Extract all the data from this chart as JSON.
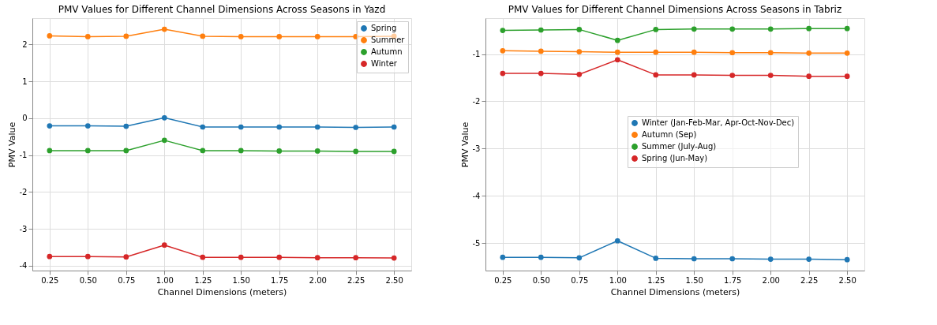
{
  "chart_data": [
    {
      "type": "line",
      "title": "PMV Values for Different Channel Dimensions Across Seasons in Yazd",
      "xlabel": "Channel Dimensions (meters)",
      "ylabel": "PMV Value",
      "x": [
        0.25,
        0.5,
        0.75,
        1.0,
        1.25,
        1.5,
        1.75,
        2.0,
        2.25,
        2.5
      ],
      "xlim": [
        0.1375,
        2.6125
      ],
      "xticks": [
        {
          "value": 0.25,
          "label": "0.25"
        },
        {
          "value": 0.5,
          "label": "0.50"
        },
        {
          "value": 0.75,
          "label": "0.75"
        },
        {
          "value": 1.0,
          "label": "1.00"
        },
        {
          "value": 1.25,
          "label": "1.25"
        },
        {
          "value": 1.5,
          "label": "1.50"
        },
        {
          "value": 1.75,
          "label": "1.75"
        },
        {
          "value": 2.0,
          "label": "2.00"
        },
        {
          "value": 2.25,
          "label": "2.25"
        },
        {
          "value": 2.5,
          "label": "2.50"
        }
      ],
      "ylim": [
        -4.13,
        2.71
      ],
      "yticks": [
        -4,
        -3,
        -2,
        -1,
        0,
        1,
        2
      ],
      "grid": true,
      "legend": "top right",
      "marker": "circle",
      "line_style": "solid",
      "series": [
        {
          "name": "Spring",
          "color": "#1f77b4",
          "values": [
            -0.21,
            -0.21,
            -0.22,
            0.01,
            -0.24,
            -0.24,
            -0.24,
            -0.24,
            -0.25,
            -0.24
          ]
        },
        {
          "name": "Summer",
          "color": "#ff7f0e",
          "values": [
            2.23,
            2.21,
            2.22,
            2.41,
            2.22,
            2.21,
            2.21,
            2.21,
            2.21,
            2.22
          ]
        },
        {
          "name": "Autumn",
          "color": "#2ca02c",
          "values": [
            -0.88,
            -0.88,
            -0.88,
            -0.6,
            -0.88,
            -0.88,
            -0.89,
            -0.89,
            -0.9,
            -0.9
          ]
        },
        {
          "name": "Winter",
          "color": "#d62728",
          "values": [
            -3.75,
            -3.75,
            -3.76,
            -3.44,
            -3.77,
            -3.77,
            -3.77,
            -3.78,
            -3.78,
            -3.79
          ]
        }
      ]
    },
    {
      "type": "line",
      "title": "PMV Values for Different Channel Dimensions Across Seasons in Tabriz",
      "xlabel": "Channel Dimensions (meters)",
      "ylabel": "PMV Value",
      "x": [
        0.25,
        0.5,
        0.75,
        1.0,
        1.25,
        1.5,
        1.75,
        2.0,
        2.25,
        2.5
      ],
      "xlim": [
        0.1375,
        2.6125
      ],
      "xticks": [
        {
          "value": 0.25,
          "label": "0.25"
        },
        {
          "value": 0.5,
          "label": "0.50"
        },
        {
          "value": 0.75,
          "label": "0.75"
        },
        {
          "value": 1.0,
          "label": "1.00"
        },
        {
          "value": 1.25,
          "label": "1.25"
        },
        {
          "value": 1.5,
          "label": "1.50"
        },
        {
          "value": 1.75,
          "label": "1.75"
        },
        {
          "value": 2.0,
          "label": "2.00"
        },
        {
          "value": 2.25,
          "label": "2.25"
        },
        {
          "value": 2.5,
          "label": "2.50"
        }
      ],
      "ylim": [
        -5.58,
        -0.24
      ],
      "yticks": [
        -5,
        -4,
        -3,
        -2,
        -1
      ],
      "grid": true,
      "legend": "right",
      "marker": "circle",
      "line_style": "solid",
      "series": [
        {
          "name": "Winter (Jan-Feb-Mar, Apr-Oct-Nov-Dec)",
          "color": "#1f77b4",
          "values": [
            -5.3,
            -5.3,
            -5.31,
            -4.95,
            -5.32,
            -5.33,
            -5.33,
            -5.34,
            -5.34,
            -5.35
          ]
        },
        {
          "name": "Autumn (Sep)",
          "color": "#ff7f0e",
          "values": [
            -0.93,
            -0.94,
            -0.95,
            -0.96,
            -0.96,
            -0.96,
            -0.97,
            -0.97,
            -0.98,
            -0.98
          ]
        },
        {
          "name": "Summer (July-Aug)",
          "color": "#2ca02c",
          "values": [
            -0.5,
            -0.49,
            -0.48,
            -0.71,
            -0.48,
            -0.47,
            -0.47,
            -0.47,
            -0.46,
            -0.46
          ]
        },
        {
          "name": "Spring (Jun-May)",
          "color": "#d62728",
          "values": [
            -1.41,
            -1.41,
            -1.43,
            -1.12,
            -1.44,
            -1.44,
            -1.45,
            -1.45,
            -1.47,
            -1.47
          ]
        }
      ]
    }
  ]
}
